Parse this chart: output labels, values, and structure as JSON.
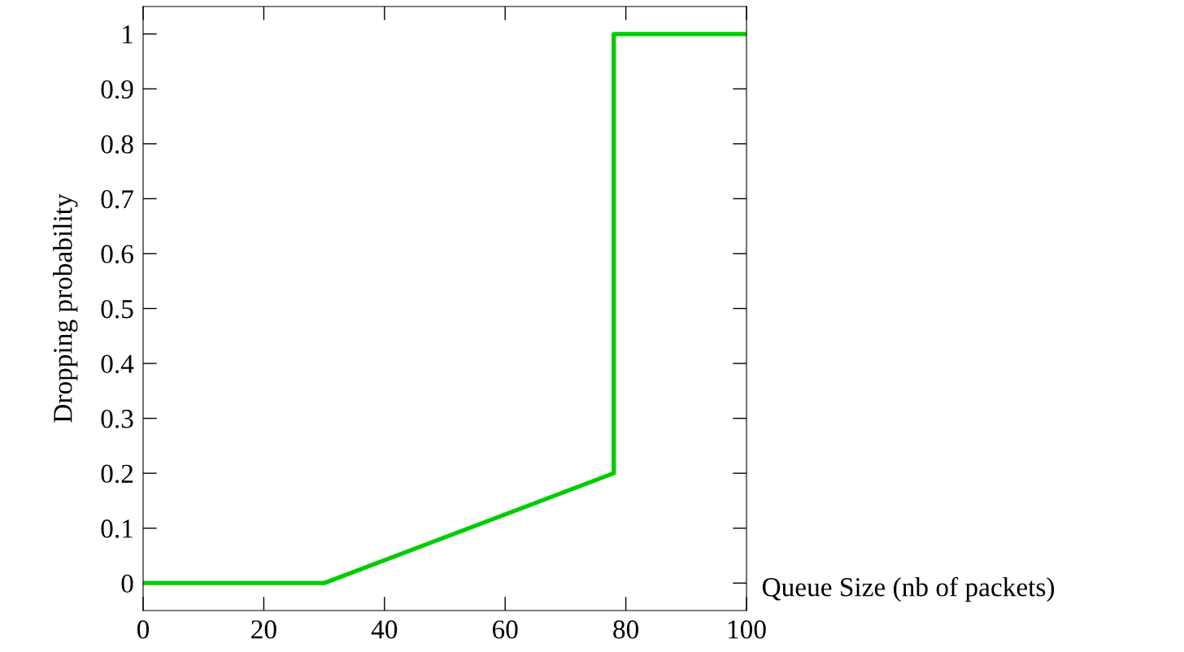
{
  "chart_data": {
    "type": "line",
    "xlabel": "Queue Size (nb of packets)",
    "ylabel": "Dropping probability",
    "series": [
      {
        "color": "#00cc00",
        "x": [
          0,
          30,
          78,
          78,
          100
        ],
        "values": [
          0,
          0,
          0.2,
          1,
          1
        ]
      }
    ],
    "xlim": [
      0,
      100
    ],
    "xticks": [
      0,
      20,
      40,
      60,
      80,
      100
    ],
    "ylim": [
      -0.05,
      1.05
    ],
    "yticks": [
      0,
      0.1,
      0.2,
      0.3,
      0.4,
      0.5,
      0.6,
      0.7,
      0.8,
      0.9,
      1
    ],
    "grid": false,
    "legend": false,
    "marker": "none",
    "line_style": "solid"
  }
}
